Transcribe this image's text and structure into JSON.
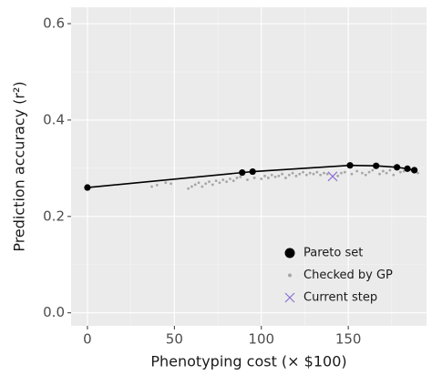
{
  "chart_data": {
    "type": "scatter",
    "x_label": "Phenotyping cost  (× $100)",
    "y_label": "Prediction accuracy (r²)",
    "xlim": [
      -9.4,
      195
    ],
    "ylim": [
      -0.027,
      0.634
    ],
    "xticks": [
      0,
      50,
      100,
      150
    ],
    "yticks": [
      {
        "value": 0,
        "label": "0.0"
      },
      0.2,
      0.4,
      0.6
    ],
    "x_minor_ticks": [
      25,
      75,
      125,
      175
    ],
    "y_minor_ticks": [
      0.1,
      0.3,
      0.5
    ],
    "grid": true,
    "legend_position": "bottom-right",
    "series": [
      {
        "name": "Pareto set",
        "color": "#000000",
        "marker": "circle-large",
        "line": true,
        "x": [
          0,
          89,
          95,
          151,
          166,
          178,
          184,
          188
        ],
        "values": [
          0.26,
          0.291,
          0.293,
          0.306,
          0.305,
          0.302,
          0.299,
          0.296
        ]
      },
      {
        "name": "Checked by GP",
        "color": "#a6a6a6",
        "marker": "circle-small",
        "line": false,
        "x": [
          37,
          40,
          45,
          48,
          58,
          60,
          62,
          64,
          66,
          68,
          70,
          72,
          74,
          76,
          78,
          80,
          82,
          84,
          86,
          88,
          92,
          96,
          100,
          102,
          104,
          106,
          108,
          110,
          112,
          114,
          116,
          118,
          120,
          122,
          124,
          126,
          128,
          130,
          132,
          134,
          136,
          138,
          144,
          146,
          148,
          152,
          155,
          158,
          160,
          162,
          164,
          168,
          170,
          172,
          174,
          176,
          180,
          182,
          186,
          190
        ],
        "values": [
          0.262,
          0.265,
          0.27,
          0.268,
          0.258,
          0.262,
          0.266,
          0.27,
          0.262,
          0.268,
          0.272,
          0.266,
          0.274,
          0.27,
          0.276,
          0.272,
          0.278,
          0.274,
          0.28,
          0.282,
          0.276,
          0.28,
          0.278,
          0.284,
          0.28,
          0.286,
          0.282,
          0.284,
          0.288,
          0.28,
          0.286,
          0.29,
          0.284,
          0.288,
          0.292,
          0.286,
          0.29,
          0.288,
          0.292,
          0.286,
          0.29,
          0.288,
          0.284,
          0.29,
          0.292,
          0.288,
          0.294,
          0.29,
          0.286,
          0.292,
          0.296,
          0.288,
          0.294,
          0.29,
          0.296,
          0.286,
          0.292,
          0.294,
          0.296,
          0.29
        ]
      },
      {
        "name": "Current step",
        "color": "#8a6fd6",
        "marker": "cross",
        "line": false,
        "x": [
          141
        ],
        "values": [
          0.283
        ]
      }
    ]
  }
}
